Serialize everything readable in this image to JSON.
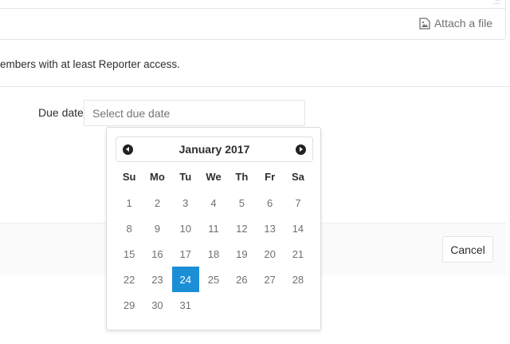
{
  "editor": {
    "attach_label": "Attach a file"
  },
  "hint": "embers with at least Reporter access.",
  "due_date": {
    "label": "Due date",
    "placeholder": "Select due date",
    "value": ""
  },
  "calendar": {
    "month": "January 2017",
    "weekdays": [
      "Su",
      "Mo",
      "Tu",
      "We",
      "Th",
      "Fr",
      "Sa"
    ],
    "weeks": [
      [
        "1",
        "2",
        "3",
        "4",
        "5",
        "6",
        "7"
      ],
      [
        "8",
        "9",
        "10",
        "11",
        "12",
        "13",
        "14"
      ],
      [
        "15",
        "16",
        "17",
        "18",
        "19",
        "20",
        "21"
      ],
      [
        "22",
        "23",
        "24",
        "25",
        "26",
        "27",
        "28"
      ],
      [
        "29",
        "30",
        "31",
        "",
        "",
        "",
        ""
      ]
    ],
    "selected": "24",
    "selected_color": "#1b8fd6"
  },
  "footer": {
    "cancel_label": "Cancel"
  }
}
